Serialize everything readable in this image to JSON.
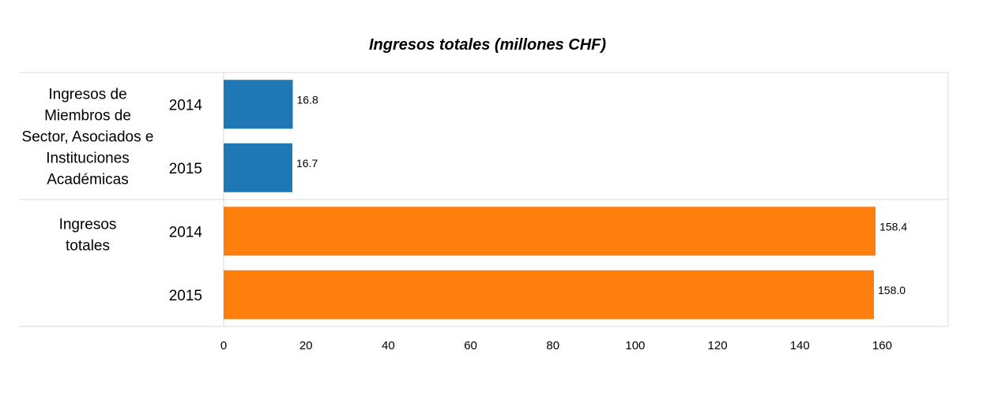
{
  "chart_data": {
    "type": "bar",
    "orientation": "horizontal",
    "title": "Ingresos totales (millones CHF)",
    "xlim": [
      0,
      170
    ],
    "xticks": [
      0,
      20,
      40,
      60,
      80,
      100,
      120,
      140,
      160
    ],
    "xtick_labels": [
      "0",
      "20",
      "40",
      "60",
      "80",
      "100",
      "120",
      "140",
      "160"
    ],
    "groups": [
      {
        "label_lines": [
          "Ingresos de",
          "Miembros de",
          "Sector, Asociados e",
          "Instituciones",
          "Académicas"
        ],
        "color": "#1f77b4",
        "bars": [
          {
            "year": "2014",
            "value": 16.8,
            "label": "16.8"
          },
          {
            "year": "2015",
            "value": 16.7,
            "label": "16.7"
          }
        ]
      },
      {
        "label_lines": [
          "Ingresos",
          "totales"
        ],
        "color": "#ff7f0e",
        "bars": [
          {
            "year": "2014",
            "value": 158.4,
            "label": "158.4"
          },
          {
            "year": "2015",
            "value": 158.0,
            "label": "158.0"
          }
        ]
      }
    ],
    "legend": "none",
    "grid": false
  }
}
